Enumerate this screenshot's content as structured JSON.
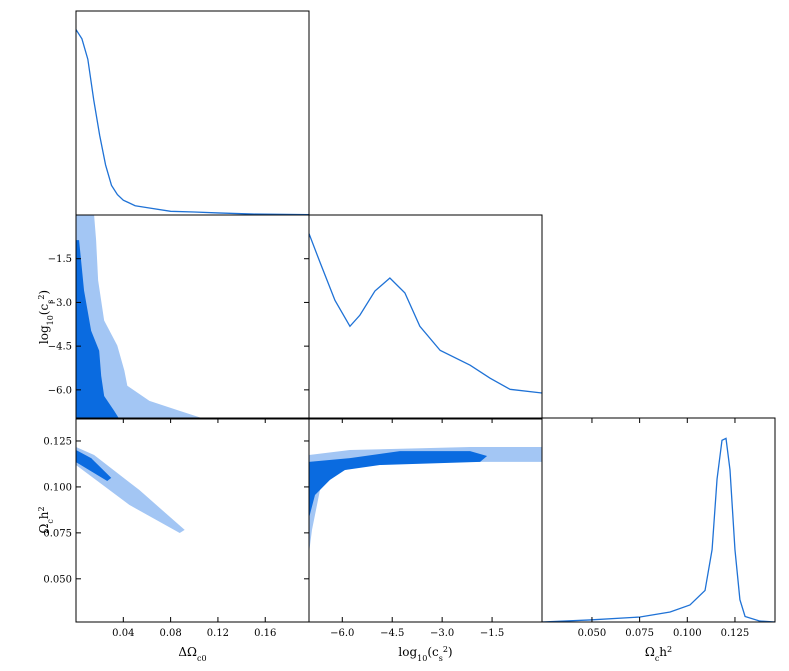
{
  "chart_data": [
    {
      "type": "line",
      "color": "#1f72d6",
      "xlim": [
        0,
        0.197
      ],
      "ylim": [
        0,
        1.1
      ],
      "x": [
        0,
        0.005,
        0.01,
        0.015,
        0.02,
        0.025,
        0.03,
        0.035,
        0.04,
        0.05,
        0.06,
        0.08,
        0.1,
        0.12,
        0.15,
        0.197
      ],
      "values": [
        1.0,
        0.95,
        0.84,
        0.62,
        0.43,
        0.27,
        0.16,
        0.11,
        0.08,
        0.05,
        0.04,
        0.02,
        0.016,
        0.011,
        0.005,
        0.002
      ]
    },
    {
      "type": "contour",
      "xlim": [
        0,
        0.197
      ],
      "ylim": [
        -7,
        0
      ],
      "yticks": [
        {
          "value": -1.5,
          "label": "−1.5"
        },
        {
          "value": -3,
          "label": "−3.0"
        },
        {
          "value": -4.5,
          "label": "−4.5"
        },
        {
          "value": -6,
          "label": "−6.0"
        }
      ],
      "ylabel": [
        {
          "text": "log"
        },
        {
          "text": "10",
          "sub": true
        },
        {
          "text": "(c"
        },
        {
          "text": "s",
          "sub": true
        },
        {
          "text": "2",
          "sup": true
        },
        {
          "text": ")"
        }
      ],
      "regions": [
        {
          "color": "#a3c6f4",
          "x": [
            0,
            0.0153,
            0.017,
            0.0187,
            0.0238,
            0.0349,
            0.0409,
            0.0434,
            0.0621,
            0.0877,
            0.1089,
            0
          ],
          "values": [
            0,
            0,
            -0.86,
            -2.24,
            -3.62,
            -4.48,
            -5.34,
            -5.86,
            -6.38,
            -6.72,
            -7,
            -7
          ]
        },
        {
          "color": "#0a6be0",
          "x": [
            0,
            0.0026,
            0.0068,
            0.0128,
            0.0196,
            0.0213,
            0.0238,
            0.0323,
            0.0366,
            0
          ],
          "values": [
            -0.86,
            -0.86,
            -2.59,
            -3.97,
            -4.66,
            -5.52,
            -6.21,
            -6.72,
            -7,
            -7
          ]
        }
      ]
    },
    {
      "type": "line",
      "color": "#1f72d6",
      "xlim": [
        -7,
        0
      ],
      "ylim": [
        0,
        1.1
      ],
      "x": [
        -7,
        -6.67,
        -6.22,
        -5.77,
        -5.47,
        -5.02,
        -4.57,
        -4.12,
        -3.67,
        -3.06,
        -2.16,
        -1.56,
        -0.96,
        0
      ],
      "values": [
        1.0,
        0.845,
        0.64,
        0.5,
        0.56,
        0.69,
        0.76,
        0.68,
        0.5,
        0.37,
        0.29,
        0.22,
        0.16,
        0.14
      ]
    },
    {
      "type": "contour",
      "xlim": [
        0,
        0.197
      ],
      "ylim": [
        0.0265,
        0.1375
      ],
      "xticks": [
        0.04,
        0.08,
        0.12,
        0.16
      ],
      "yticks": [
        {
          "value": 0.05,
          "label": "0.050"
        },
        {
          "value": 0.075,
          "label": "0.075"
        },
        {
          "value": 0.1,
          "label": "0.100"
        },
        {
          "value": 0.125,
          "label": "0.125"
        }
      ],
      "xlabel": [
        {
          "text": "ΔΩ"
        },
        {
          "text": "c0",
          "sub": true
        }
      ],
      "ylabel": [
        {
          "text": "Ω"
        },
        {
          "text": "c",
          "sub": true
        },
        {
          "text": "h"
        },
        {
          "text": "2",
          "sup": true
        }
      ],
      "regions": [
        {
          "color": "#a3c6f4",
          "x": [
            0,
            0.0153,
            0.0536,
            0.0919,
            0.0877,
            0.0451,
            0
          ],
          "values": [
            0.1217,
            0.1174,
            0.0983,
            0.0766,
            0.0749,
            0.0902,
            0.1119
          ]
        },
        {
          "color": "#0a6be0",
          "x": [
            0,
            0.0128,
            0.0298,
            0.0264,
            0
          ],
          "values": [
            0.1201,
            0.1157,
            0.1049,
            0.1032,
            0.1135
          ]
        }
      ]
    },
    {
      "type": "contour",
      "xlim": [
        -7,
        0
      ],
      "ylim": [
        0.0265,
        0.1375
      ],
      "xticks": [
        {
          "value": -6,
          "label": "−6.0"
        },
        {
          "value": -4.5,
          "label": "−4.5"
        },
        {
          "value": -3,
          "label": "−3.0"
        },
        {
          "value": -1.5,
          "label": "−1.5"
        }
      ],
      "xlabel": [
        {
          "text": "log"
        },
        {
          "text": "10",
          "sub": true
        },
        {
          "text": "(c"
        },
        {
          "text": "s",
          "sub": true
        },
        {
          "text": "2",
          "sup": true
        },
        {
          "text": ")"
        }
      ],
      "regions": [
        {
          "color": "#a3c6f4",
          "x": [
            -7,
            -6.91,
            -6.67,
            -6.37,
            -5.92,
            -5.17,
            -4.27,
            0,
            0,
            -2.16,
            -5.77,
            -7
          ],
          "values": [
            0.0641,
            0.0766,
            0.0983,
            0.1065,
            0.1092,
            0.1119,
            0.1136,
            0.1136,
            0.1217,
            0.1217,
            0.1201,
            0.1174
          ]
        },
        {
          "color": "#0a6be0",
          "x": [
            -7,
            -6.82,
            -6.37,
            -5.92,
            -4.87,
            -1.86,
            -1.65,
            -2.16,
            -4.27,
            -5.77,
            -7
          ],
          "values": [
            0.0831,
            0.0956,
            0.1038,
            0.1092,
            0.1119,
            0.1136,
            0.1168,
            0.1195,
            0.1195,
            0.1157,
            0.1136
          ]
        }
      ]
    },
    {
      "type": "line",
      "color": "#1f72d6",
      "xlim": [
        0.0238,
        0.146
      ],
      "ylim": [
        0,
        1.1
      ],
      "xticks": [
        {
          "value": 0.05,
          "label": "0.050"
        },
        {
          "value": 0.075,
          "label": "0.075"
        },
        {
          "value": 0.1,
          "label": "0.100"
        },
        {
          "value": 0.125,
          "label": "0.125"
        }
      ],
      "xlabel": [
        {
          "text": "Ω"
        },
        {
          "text": "c",
          "sub": true
        },
        {
          "text": "h"
        },
        {
          "text": "2",
          "sup": true
        }
      ],
      "x": [
        0.0238,
        0.049,
        0.0752,
        0.091,
        0.1014,
        0.1093,
        0.113,
        0.1156,
        0.1182,
        0.1203,
        0.1224,
        0.125,
        0.1276,
        0.1303,
        0.1381,
        0.146
      ],
      "values": [
        0,
        0.011,
        0.027,
        0.054,
        0.092,
        0.17,
        0.39,
        0.77,
        0.98,
        0.99,
        0.82,
        0.39,
        0.12,
        0.03,
        0.005,
        0
      ]
    }
  ]
}
